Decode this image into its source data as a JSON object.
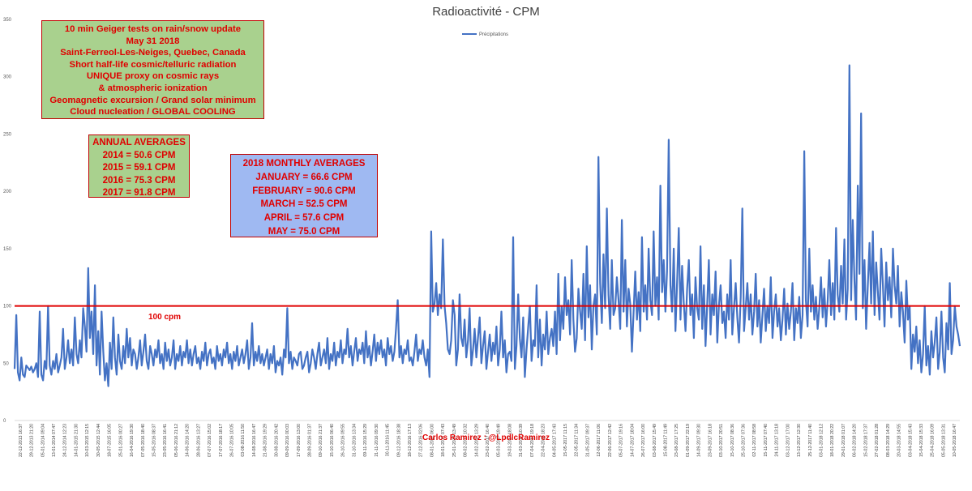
{
  "chart_data": {
    "type": "line",
    "title": "Radioactivité - CPM",
    "ylim": [
      0,
      350
    ],
    "yticks": [
      0,
      50,
      100,
      150,
      200,
      250,
      300,
      350
    ],
    "grid": false,
    "legend": "top-center",
    "series": [
      {
        "name": "Précipitations",
        "color": "#4472c4",
        "values": [
          45,
          92,
          42,
          35,
          55,
          40,
          38,
          48,
          46,
          44,
          47,
          42,
          45,
          50,
          38,
          95,
          40,
          35,
          52,
          45,
          100,
          48,
          40,
          52,
          45,
          58,
          42,
          48,
          55,
          80,
          45,
          55,
          70,
          50,
          62,
          48,
          90,
          58,
          50,
          70,
          55,
          98,
          82,
          60,
          133,
          72,
          95,
          58,
          118,
          48,
          78,
          40,
          95,
          60,
          35,
          50,
          30,
          68,
          45,
          90,
          55,
          40,
          75,
          52,
          45,
          65,
          50,
          80,
          55,
          72,
          48,
          62,
          58,
          45,
          55,
          70,
          48,
          60,
          75,
          52,
          45,
          65,
          58,
          48,
          62,
          55,
          70,
          50,
          58,
          45,
          68,
          52,
          62,
          48,
          55,
          70,
          45,
          58,
          52,
          65,
          48,
          60,
          55,
          70,
          50,
          62,
          48,
          58,
          65,
          50,
          55,
          45,
          60,
          52,
          68,
          48,
          58,
          62,
          50,
          55,
          45,
          65,
          52,
          58,
          48,
          62,
          55,
          68,
          50,
          58,
          45,
          60,
          52,
          65,
          48,
          55,
          62,
          50,
          58,
          70,
          45,
          55,
          85,
          48,
          60,
          52,
          65,
          50,
          58,
          48,
          55,
          62,
          45,
          58,
          50,
          65,
          42,
          52,
          48,
          55,
          40,
          62,
          55,
          98,
          50,
          60,
          45,
          55,
          52,
          48,
          58,
          60,
          45,
          48,
          55,
          60,
          42,
          50,
          62,
          55,
          45,
          58,
          68,
          48,
          55,
          62,
          50,
          72,
          45,
          58,
          52,
          68,
          48,
          60,
          55,
          70,
          50,
          62,
          58,
          80,
          55,
          65,
          48,
          60,
          72,
          52,
          62,
          58,
          68,
          50,
          78,
          55,
          65,
          48,
          60,
          75,
          52,
          68,
          58,
          70,
          55,
          62,
          48,
          72,
          58,
          65,
          52,
          60,
          80,
          105,
          55,
          65,
          50,
          62,
          58,
          70,
          52,
          55,
          48,
          60,
          75,
          52,
          62,
          58,
          70,
          55,
          48,
          62,
          38,
          165,
          95,
          102,
          120,
          92,
          110,
          98,
          158,
          100,
          85,
          62,
          58,
          70,
          105,
          92,
          48,
          62,
          110,
          72,
          65,
          88,
          55,
          70,
          98,
          48,
          62,
          80,
          55,
          72,
          90,
          50,
          65,
          78,
          45,
          60,
          75,
          52,
          68,
          58,
          82,
          48,
          62,
          95,
          55,
          70,
          42,
          58,
          60,
          52,
          160,
          45,
          65,
          110,
          72,
          55,
          90,
          38,
          62,
          82,
          100,
          52,
          70,
          65,
          118,
          55,
          88,
          48,
          75,
          62,
          95,
          58,
          72,
          80,
          65,
          95,
          58,
          128,
          70,
          100,
          80,
          125,
          92,
          105,
          75,
          140,
          88,
          60,
          72,
          115,
          96,
          80,
          128,
          70,
          152,
          90,
          118,
          62,
          100,
          110,
          75,
          230,
          120,
          85,
          145,
          98,
          185,
          110,
          80,
          140,
          92,
          98,
          125,
          105,
          80,
          175,
          95,
          140,
          82,
          115,
          102,
          60,
          95,
          130,
          88,
          112,
          78,
          160,
          95,
          118,
          88,
          150,
          105,
          92,
          165,
          100,
          125,
          88,
          205,
          112,
          140,
          95,
          130,
          245,
          118,
          95,
          150,
          78,
          120,
          168,
          88,
          135,
          102,
          78,
          115,
          140,
          92,
          110,
          72,
          125,
          98,
          88,
          152,
          80,
          118,
          65,
          102,
          140,
          75,
          110,
          92,
          130,
          68,
          100,
          118,
          85,
          95,
          72,
          110,
          88,
          140,
          75,
          98,
          120,
          90,
          68,
          108,
          185,
          78,
          98,
          120,
          88,
          110,
          75,
          95,
          128,
          82,
          105,
          68,
          92,
          115,
          78,
          100,
          85,
          125,
          72,
          95,
          110,
          82,
          98,
          70,
          88,
          115,
          75,
          102,
          80,
          95,
          120,
          70,
          98,
          85,
          108,
          72,
          92,
          235,
          105,
          82,
          150,
          95,
          118,
          88,
          108,
          80,
          98,
          125,
          90,
          115,
          82,
          105,
          140,
          92,
          120,
          88,
          168,
          110,
          95,
          135,
          102,
          158,
          88,
          115,
          310,
          105,
          175,
          122,
          88,
          205,
          128,
          268,
          98,
          140,
          80,
          118,
          155,
          102,
          165,
          92,
          138,
          112,
          88,
          150,
          118,
          82,
          138,
          105,
          125,
          90,
          150,
          118,
          102,
          135,
          82,
          112,
          95,
          68,
          122,
          88,
          100,
          45,
          75,
          60,
          82,
          50,
          70,
          42,
          58,
          100,
          48,
          65,
          40,
          78,
          55,
          68,
          90,
          45,
          60,
          95,
          55,
          42,
          85,
          62,
          120,
          58,
          70,
          100,
          82,
          75,
          65
        ]
      }
    ]
  },
  "annotations": {
    "info_box": [
      "10 min Geiger tests on rain/snow update",
      "May 31 2018",
      "Saint-Ferreol-Les-Neiges, Quebec, Canada",
      "Short half-life cosmic/telluric radiation",
      "UNIQUE proxy on cosmic rays",
      "& atmospheric ionization",
      "Geomagnetic excursion / Grand solar minimum",
      "Cloud nucleation / GLOBAL COOLING"
    ],
    "annual_box": [
      "ANNUAL AVERAGES",
      "2014 = 50.6 CPM",
      "2015 = 59.1 CPM",
      "2016 = 75.3 CPM",
      "2017 = 91.8 CPM"
    ],
    "monthly_box": [
      "2018 MONTHLY AVERAGES",
      "JANUARY = 66.6 CPM",
      "FEBRUARY = 90.6 CPM",
      "MARCH = 52.5 CPM",
      "APRIL = 57.6 CPM",
      "MAY = 75.0 CPM"
    ],
    "ref_line_label": "100 cpm",
    "ref_line_value": 100,
    "ref_line_color": "#e00000",
    "credit": "Carlos Ramirez : @LpdlcRamirez"
  },
  "x_tick_labels": [
    "22-12-2013 16:37",
    "29-12-2013 21:20",
    "05-01-2014 09:04",
    "13-01-2014 07:47",
    "24-12-2014 12:23",
    "14-01-2015 21:30",
    "10-03-2015 12:15",
    "30-05-2015 12:44",
    "18-07-2015 16:05",
    "25-01-2016 00:27",
    "16-04-2016 19:30",
    "07-05-2016 18:40",
    "15-05-2016 08:37",
    "23-05-2016 16:41",
    "05-06-2016 21:12",
    "14-06-2016 14:20",
    "28-06-2016 13:27",
    "07-07-2016 15:02",
    "17-07-2016 18:17",
    "26-07-2016 10:05",
    "03-08-2016 11:50",
    "14-08-2016 16:47",
    "21-08-2016 19:29",
    "30-08-2016 20:42",
    "09-09-2016 00:03",
    "17-09-2016 13:00",
    "28-09-2016 01:37",
    "09-10-2016 21:37",
    "15-10-2016 06:40",
    "26-10-2016 09:55",
    "31-10-2016 13:34",
    "09-11-2016 15:29",
    "21-11-2016 09:30",
    "30-11-2016 11:45",
    "09-12-2016 18:38",
    "18-12-2016 17:13",
    "27-12-2016 02:06",
    "08-01-2017 06:00",
    "18-01-2017 07:43",
    "25-01-2017 13:49",
    "08-02-2017 10:32",
    "14-02-2017 13:29",
    "23-02-2017 16:40",
    "05-03-2017 19:49",
    "19-03-2017 18:08",
    "31-03-2017 10:39",
    "07-04-2017 19:18",
    "22-04-2017 18:23",
    "04-05-2017 17:43",
    "15-05-2017 11:15",
    "22-05-2017 11:34",
    "31-05-2017 09:37",
    "12-06-2017 11:06",
    "22-06-2017 12:42",
    "05-07-2017 19:16",
    "14-07-2017 18:04",
    "26-07-2017 16:00",
    "03-08-2017 15:49",
    "15-08-2017 11:49",
    "23-08-2017 17:25",
    "01-09-2017 22:19",
    "14-09-2017 09:30",
    "23-09-2017 16:18",
    "03-10-2017 20:51",
    "15-10-2017 08:36",
    "25-10-2017 07:36",
    "02-11-2017 08:58",
    "15-11-2017 07:40",
    "24-11-2017 13:18",
    "03-12-2017 17:00",
    "13-12-2017 12:30",
    "25-12-2017 11:40",
    "03-01-2018 12:12",
    "18-01-2018 20:22",
    "29-01-2018 01:07",
    "06-02-2018 14:20",
    "15-02-2018 17:37",
    "27-02-2018 01:28",
    "08-03-2018 14:29",
    "20-03-2018 14:55",
    "03-04-2018 15:43",
    "15-04-2018 15:33",
    "25-04-2018 16:09",
    "05-05-2018 13:31",
    "10-05-2018 16:47"
  ]
}
